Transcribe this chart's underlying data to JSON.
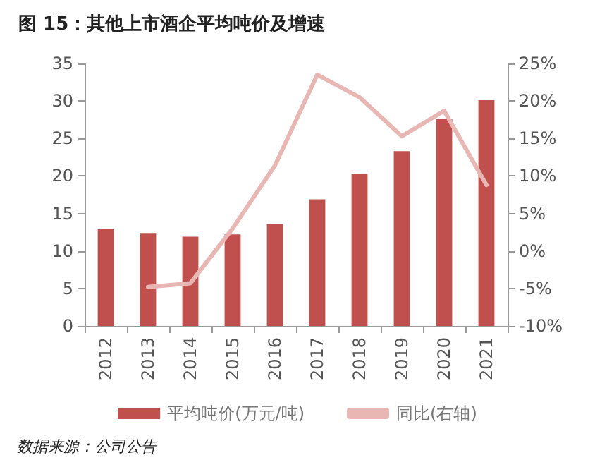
{
  "chart_data": {
    "type": "bar",
    "title": "图 15：其他上市酒企平均吨价及增速",
    "categories": [
      "2012",
      "2013",
      "2014",
      "2015",
      "2016",
      "2017",
      "2018",
      "2019",
      "2020",
      "2021"
    ],
    "series": [
      {
        "name": "平均吨价(万元/吨)",
        "color": "#c0504d",
        "values": [
          12.9,
          12.4,
          11.9,
          12.2,
          13.6,
          16.9,
          20.3,
          23.3,
          27.6,
          30.1
        ]
      },
      {
        "name": "同比(右轴)",
        "type": "line",
        "axis": "y2",
        "color": "#e8b7b4",
        "values": [
          null,
          -4.8,
          -4.3,
          3,
          11.4,
          23.5,
          20.5,
          15.3,
          18.7,
          8.8
        ]
      }
    ],
    "ylim": [
      0,
      35
    ],
    "yticks": [
      0,
      5,
      10,
      15,
      20,
      25,
      30,
      35
    ],
    "y2lim": [
      -10,
      25
    ],
    "y2ticks": [
      {
        "value": -10,
        "label": "-10%"
      },
      {
        "value": -5,
        "label": "-5%"
      },
      {
        "value": 0,
        "label": "0%"
      },
      {
        "value": 5,
        "label": "5%"
      },
      {
        "value": 10,
        "label": "10%"
      },
      {
        "value": 15,
        "label": "15%"
      },
      {
        "value": 20,
        "label": "20%"
      },
      {
        "value": 25,
        "label": "25%"
      }
    ],
    "grid": false,
    "legend": "bottom",
    "marker": "none",
    "line_style": "solid",
    "annotations": [
      "数据来源：公司公告"
    ]
  }
}
